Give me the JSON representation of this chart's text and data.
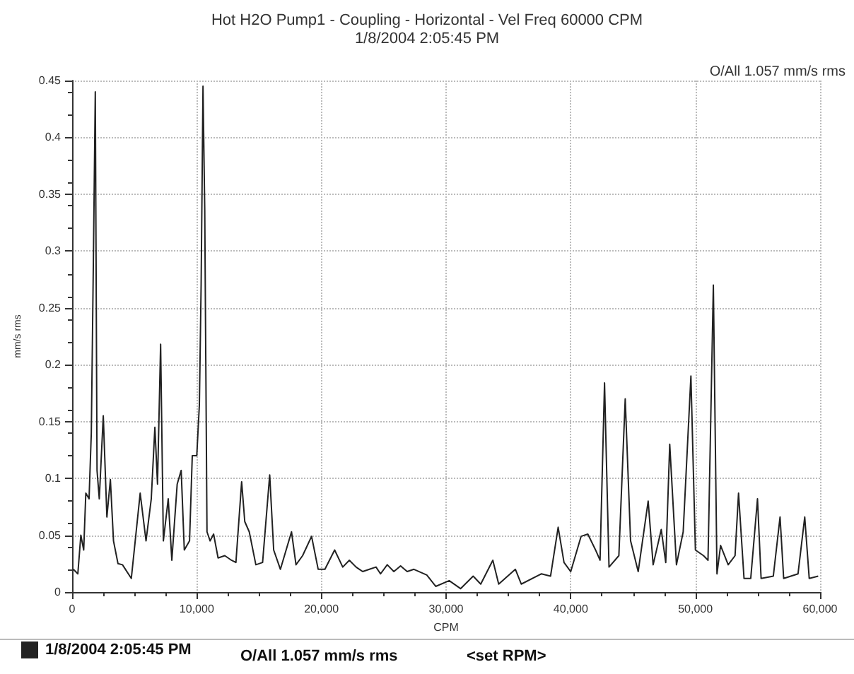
{
  "chart_data": {
    "type": "line",
    "title": "Hot H2O Pump1 - Coupling - Horizontal - Vel Freq 60000 CPM",
    "subtitle": "1/8/2004 2:05:45 PM",
    "xlabel": "CPM",
    "ylabel": "mm/s rms",
    "annotations": [
      "O/All 1.057 mm/s rms",
      "O/All 1.057 mm/s rms",
      "<set RPM>"
    ],
    "xlim": [
      0,
      60000
    ],
    "xticks": [
      0,
      {
        "value": 10000,
        "label": "10,000"
      },
      {
        "value": 20000,
        "label": "20,000"
      },
      {
        "value": 30000,
        "label": "30,000"
      },
      {
        "value": 40000,
        "label": "40,000"
      },
      {
        "value": 50000,
        "label": "50,000"
      },
      {
        "value": 60000,
        "label": "60,000"
      }
    ],
    "ylim": [
      0,
      0.45
    ],
    "yticks": [
      0,
      0.05,
      0.1,
      0.15,
      0.2,
      0.25,
      0.3,
      0.35,
      0.4,
      0.45
    ],
    "grid": true,
    "legend": "bottom left",
    "marker": "none",
    "line_style": "solid",
    "series": [
      {
        "name": "1/8/2004 2:05:45 PM",
        "color": "#222222",
        "x": [
          100,
          460,
          700,
          930,
          1100,
          1360,
          1540,
          1710,
          1860,
          2000,
          2180,
          2500,
          2790,
          3070,
          3320,
          3680,
          4040,
          4750,
          5460,
          5930,
          6350,
          6640,
          6850,
          7100,
          7320,
          7710,
          8000,
          8430,
          8750,
          9000,
          9420,
          9640,
          10000,
          10210,
          10350,
          10500,
          10640,
          10820,
          11070,
          11350,
          11710,
          12250,
          12780,
          13140,
          13600,
          13850,
          14210,
          14740,
          15280,
          15850,
          16170,
          16710,
          17600,
          17960,
          18490,
          19210,
          19740,
          20280,
          21060,
          21710,
          22240,
          22780,
          23310,
          23850,
          24380,
          24740,
          25280,
          25810,
          26350,
          26880,
          27420,
          28450,
          29170,
          30250,
          31160,
          32170,
          32780,
          33750,
          34220,
          35560,
          36030,
          37650,
          38380,
          38990,
          39460,
          40000,
          40830,
          41370,
          41990,
          42350,
          42710,
          43070,
          43860,
          44370,
          44800,
          45410,
          46210,
          46610,
          47260,
          47620,
          47940,
          48480,
          49020,
          49640,
          50000,
          50650,
          51010,
          51440,
          51730,
          52020,
          52630,
          53180,
          53460,
          53900,
          54440,
          54980,
          55270,
          56250,
          56790,
          57080,
          58230,
          58770,
          59130,
          59850
        ],
        "values": [
          0.02,
          0.016,
          0.05,
          0.037,
          0.087,
          0.082,
          0.14,
          0.295,
          0.44,
          0.107,
          0.082,
          0.155,
          0.066,
          0.099,
          0.045,
          0.025,
          0.024,
          0.012,
          0.087,
          0.045,
          0.082,
          0.145,
          0.095,
          0.218,
          0.045,
          0.082,
          0.028,
          0.095,
          0.107,
          0.037,
          0.045,
          0.12,
          0.12,
          0.165,
          0.27,
          0.445,
          0.336,
          0.053,
          0.045,
          0.051,
          0.03,
          0.032,
          0.028,
          0.026,
          0.097,
          0.062,
          0.053,
          0.024,
          0.026,
          0.103,
          0.037,
          0.02,
          0.053,
          0.024,
          0.032,
          0.049,
          0.02,
          0.02,
          0.037,
          0.022,
          0.028,
          0.022,
          0.018,
          0.02,
          0.022,
          0.016,
          0.024,
          0.018,
          0.023,
          0.018,
          0.02,
          0.015,
          0.005,
          0.01,
          0.003,
          0.014,
          0.007,
          0.028,
          0.007,
          0.02,
          0.007,
          0.016,
          0.014,
          0.057,
          0.026,
          0.018,
          0.049,
          0.051,
          0.037,
          0.028,
          0.184,
          0.022,
          0.032,
          0.17,
          0.045,
          0.018,
          0.08,
          0.024,
          0.055,
          0.026,
          0.13,
          0.024,
          0.053,
          0.19,
          0.037,
          0.032,
          0.028,
          0.27,
          0.016,
          0.041,
          0.024,
          0.032,
          0.087,
          0.012,
          0.012,
          0.082,
          0.012,
          0.014,
          0.066,
          0.012,
          0.016,
          0.066,
          0.012,
          0.014
        ]
      }
    ]
  }
}
